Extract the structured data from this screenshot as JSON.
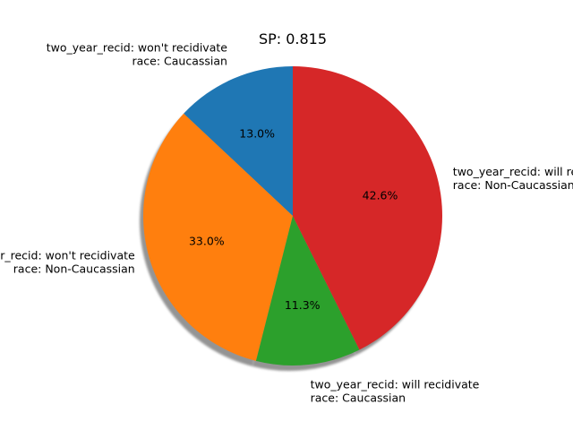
{
  "chart_data": {
    "type": "pie",
    "title": "SP: 0.815",
    "shadow": true,
    "start_angle": 90,
    "slices": [
      {
        "label_lines": [
          "two_year_recid: won't recidivate",
          "race: Caucassian"
        ],
        "value": 13.0,
        "pct_label": "13.0%",
        "color": "#1f77b4"
      },
      {
        "label_lines": [
          "two_year_recid: won't recidivate",
          "race: Non-Caucassian"
        ],
        "value": 33.0,
        "pct_label": "33.0%",
        "color": "#ff7f0e"
      },
      {
        "label_lines": [
          "two_year_recid: will recidivate",
          "race: Caucassian"
        ],
        "value": 11.3,
        "pct_label": "11.3%",
        "color": "#2ca02c"
      },
      {
        "label_lines": [
          "two_year_recid: will recidivate",
          "race: Non-Caucassian"
        ],
        "value": 42.6,
        "pct_label": "42.6%",
        "color": "#d62728"
      }
    ]
  }
}
